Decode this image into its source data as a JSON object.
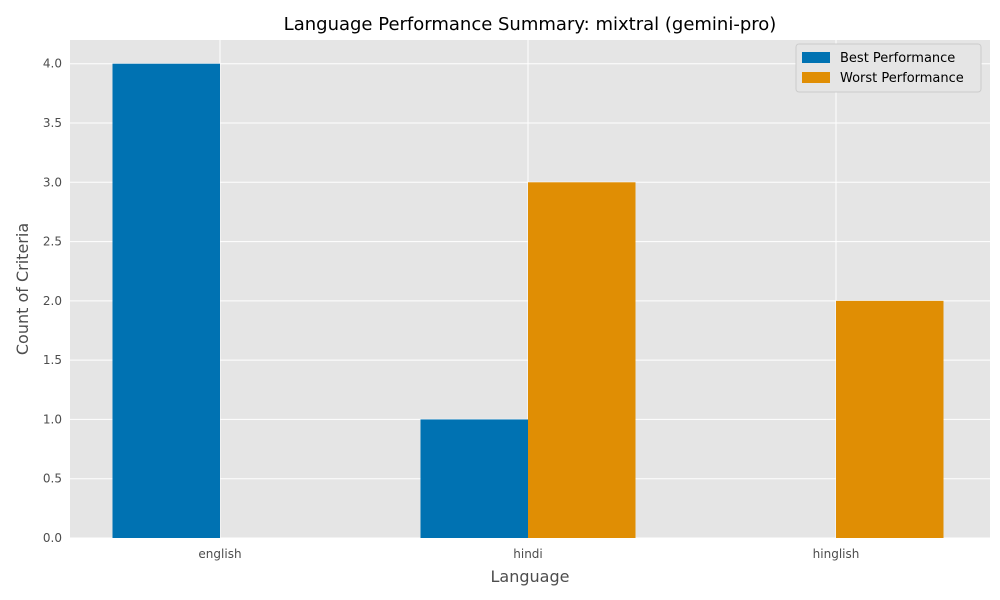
{
  "chart_data": {
    "type": "bar",
    "title": "Language Performance Summary: mixtral (gemini-pro)",
    "xlabel": "Language",
    "ylabel": "Count of Criteria",
    "categories": [
      "english",
      "hindi",
      "hinglish"
    ],
    "series": [
      {
        "name": "Best Performance",
        "values": [
          4,
          1,
          0
        ],
        "color": "#0072b2"
      },
      {
        "name": "Worst Performance",
        "values": [
          0,
          3,
          2
        ],
        "color": "#e08e04"
      }
    ],
    "ylim": [
      0,
      4.2
    ],
    "yticks": [
      0.0,
      0.5,
      1.0,
      1.5,
      2.0,
      2.5,
      3.0,
      3.5,
      4.0
    ],
    "grid": true,
    "legend_position": "top-right",
    "colors": {
      "plot_background": "#e5e5e5",
      "grid": "#ffffff"
    }
  }
}
